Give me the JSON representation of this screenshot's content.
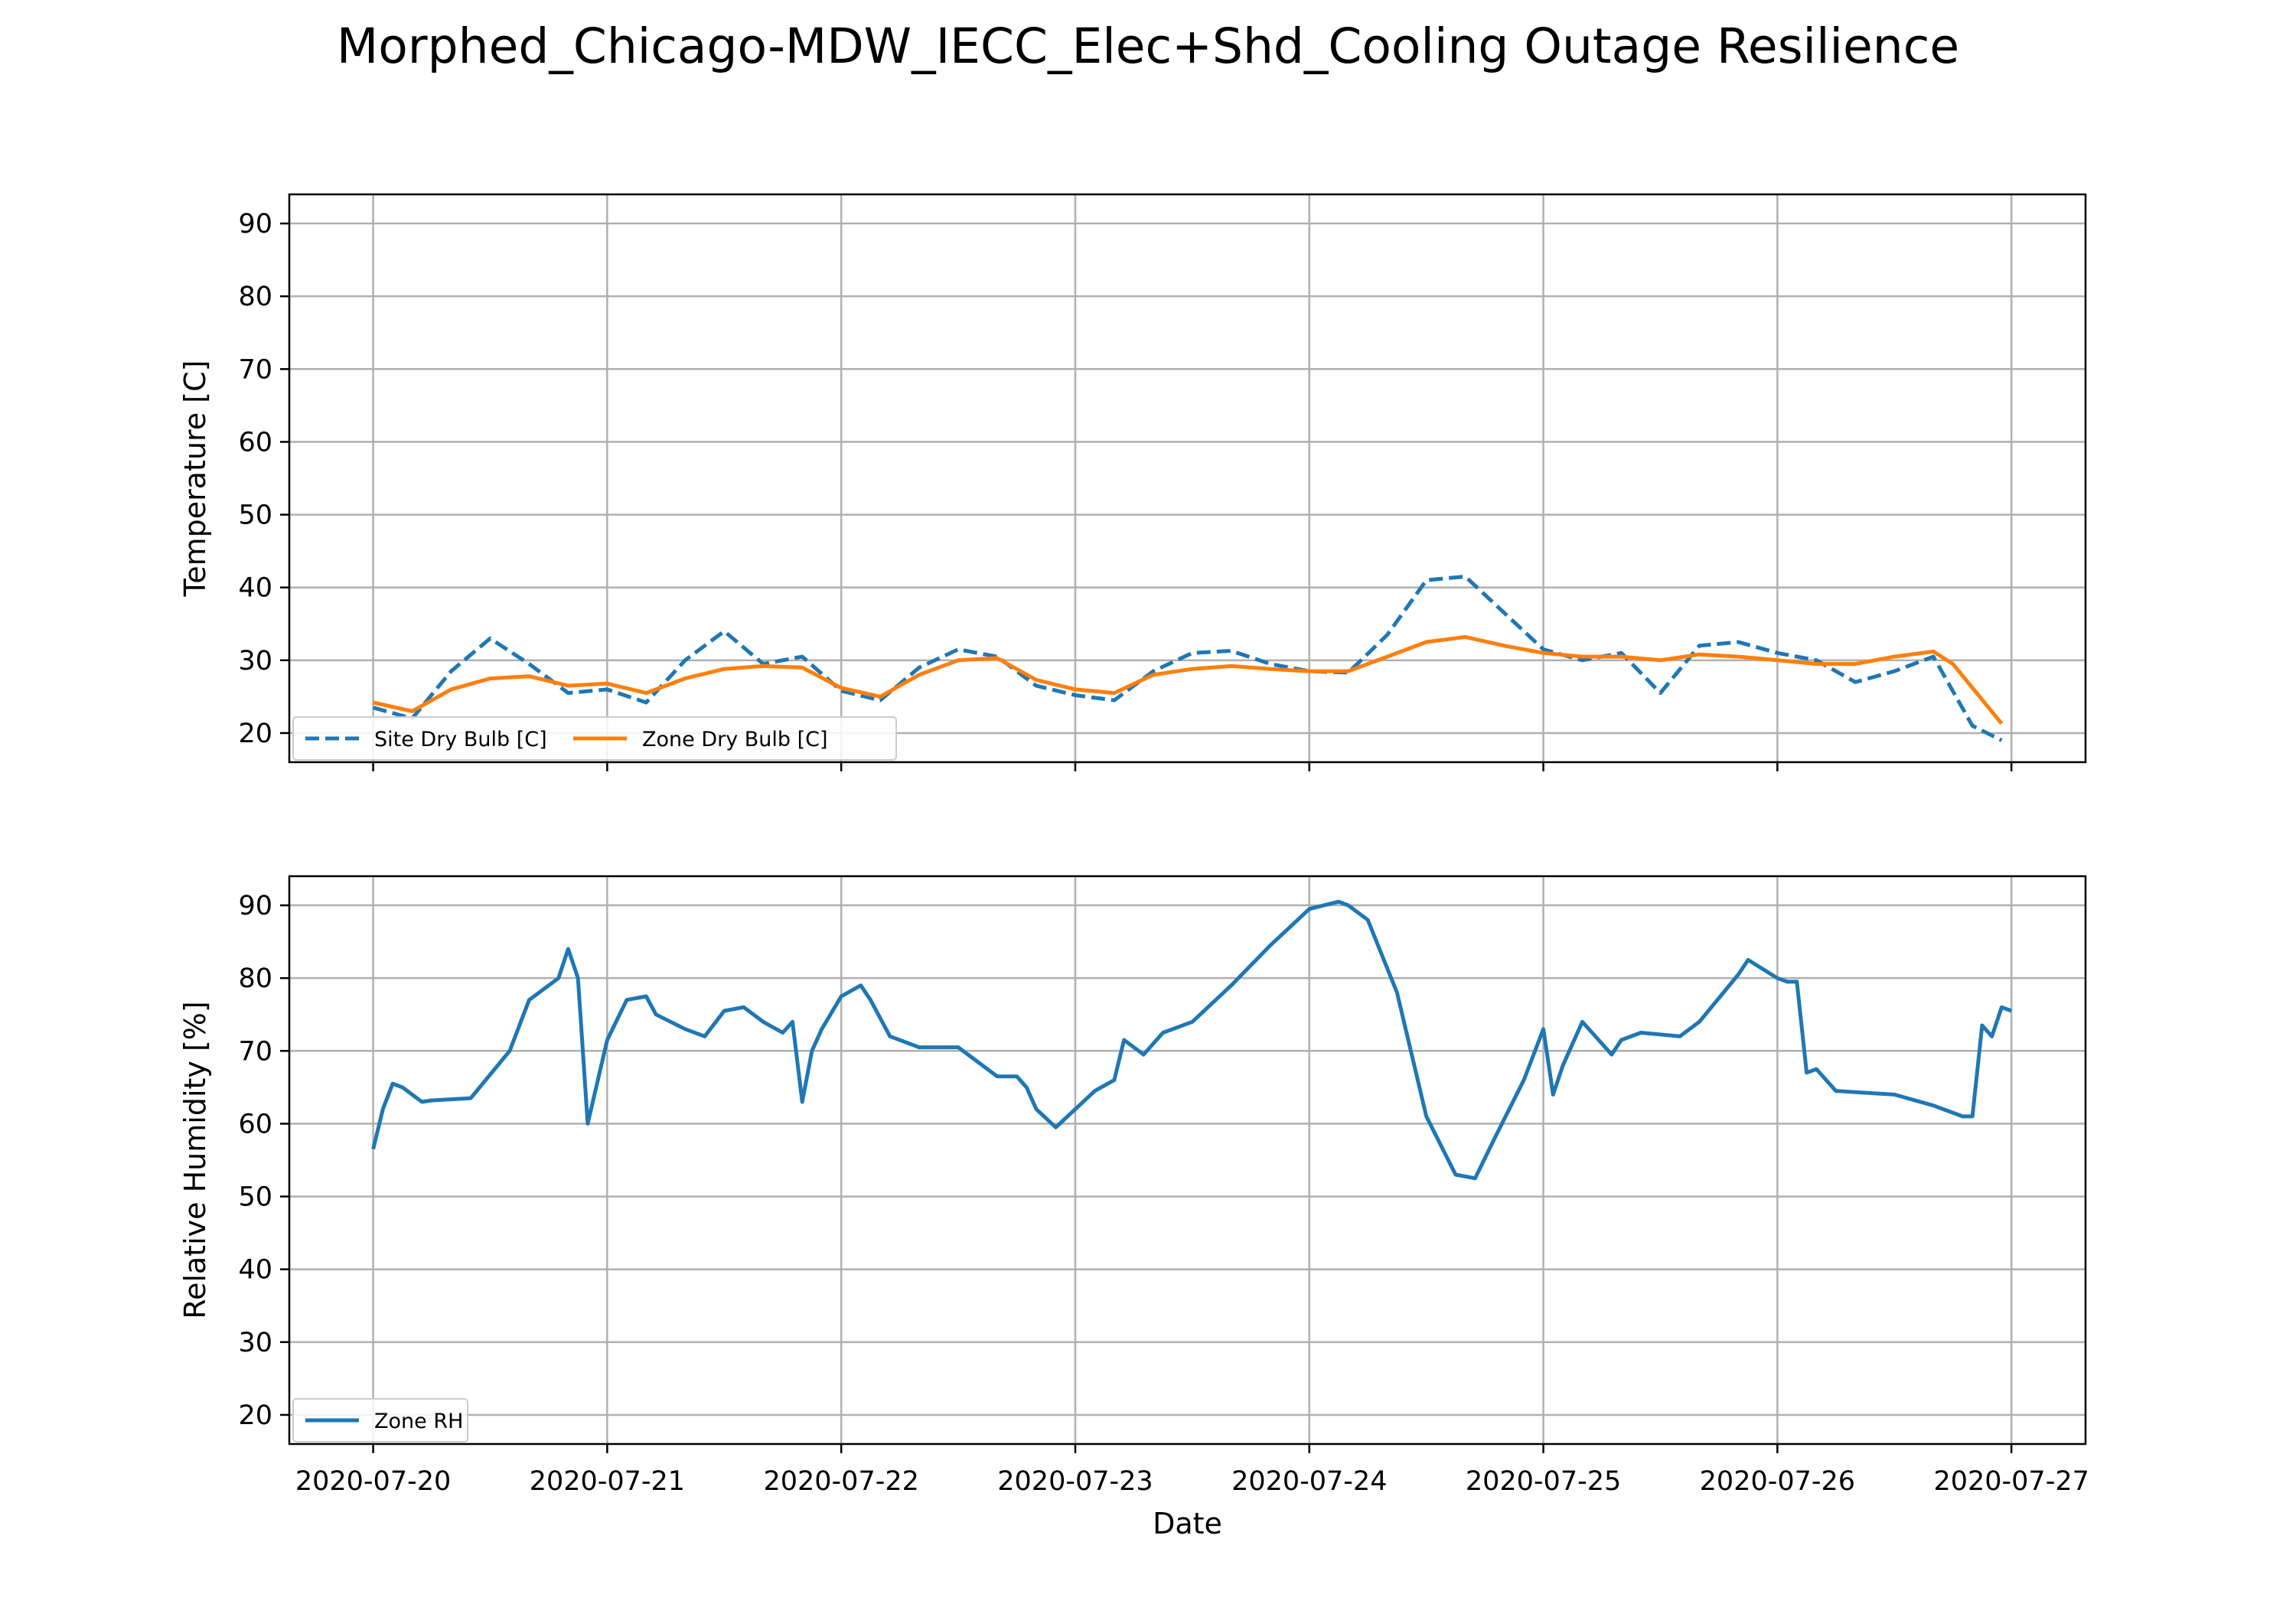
{
  "title": "Morphed_Chicago-MDW_IECC_Elec+Shd_Cooling Outage Resilience",
  "colors": {
    "site": "#1f77b4",
    "zone_temp": "#ff7f0e",
    "zone_rh": "#1f77b4"
  },
  "chart_data": [
    {
      "type": "line",
      "ylabel": "Temperature [C]",
      "ylim": [
        16,
        94
      ],
      "yticks": [
        20,
        30,
        40,
        50,
        60,
        70,
        80,
        90
      ],
      "xlim": [
        "2020-07-19T15:24",
        "2020-07-27T07:36"
      ],
      "xticks": [
        "2020-07-20",
        "2020-07-21",
        "2020-07-22",
        "2020-07-23",
        "2020-07-24",
        "2020-07-25",
        "2020-07-26",
        "2020-07-27"
      ],
      "xtick_labels_visible": false,
      "grid": true,
      "legend": {
        "placement": "lower left",
        "columns": 2
      },
      "series": [
        {
          "name": "Site Dry Bulb [C]",
          "style": "dashed",
          "color": "#1f77b4",
          "x": [
            "2020-07-20T00:00",
            "2020-07-20T04:00",
            "2020-07-20T08:00",
            "2020-07-20T12:00",
            "2020-07-20T16:00",
            "2020-07-20T20:00",
            "2020-07-21T00:00",
            "2020-07-21T04:00",
            "2020-07-21T08:00",
            "2020-07-21T12:00",
            "2020-07-21T16:00",
            "2020-07-21T20:00",
            "2020-07-22T00:00",
            "2020-07-22T04:00",
            "2020-07-22T08:00",
            "2020-07-22T12:00",
            "2020-07-22T16:00",
            "2020-07-22T20:00",
            "2020-07-23T00:00",
            "2020-07-23T04:00",
            "2020-07-23T08:00",
            "2020-07-23T12:00",
            "2020-07-23T16:00",
            "2020-07-23T20:00",
            "2020-07-24T00:00",
            "2020-07-24T04:00",
            "2020-07-24T08:00",
            "2020-07-24T12:00",
            "2020-07-24T16:00",
            "2020-07-24T20:00",
            "2020-07-25T00:00",
            "2020-07-25T04:00",
            "2020-07-25T08:00",
            "2020-07-25T12:00",
            "2020-07-25T16:00",
            "2020-07-25T20:00",
            "2020-07-26T00:00",
            "2020-07-26T04:00",
            "2020-07-26T08:00",
            "2020-07-26T12:00",
            "2020-07-26T16:00",
            "2020-07-26T20:00",
            "2020-07-26T23:00"
          ],
          "y": [
            23.5,
            22.0,
            28.5,
            33.0,
            29.5,
            25.5,
            26.0,
            24.2,
            30.0,
            34.0,
            29.5,
            30.5,
            25.8,
            24.5,
            29.0,
            31.5,
            30.5,
            26.5,
            25.2,
            24.5,
            28.5,
            31.0,
            31.3,
            29.5,
            28.5,
            28.3,
            33.5,
            41.0,
            41.5,
            36.5,
            31.5,
            30.0,
            31.0,
            25.5,
            32.0,
            32.5,
            31.0,
            30.0,
            27.0,
            28.5,
            30.5,
            21.0,
            19.0
          ]
        },
        {
          "name": "Zone Dry Bulb [C]",
          "style": "solid",
          "color": "#ff7f0e",
          "x": [
            "2020-07-20T00:00",
            "2020-07-20T04:00",
            "2020-07-20T08:00",
            "2020-07-20T12:00",
            "2020-07-20T16:00",
            "2020-07-20T20:00",
            "2020-07-21T00:00",
            "2020-07-21T04:00",
            "2020-07-21T08:00",
            "2020-07-21T12:00",
            "2020-07-21T16:00",
            "2020-07-21T20:00",
            "2020-07-22T00:00",
            "2020-07-22T04:00",
            "2020-07-22T08:00",
            "2020-07-22T12:00",
            "2020-07-22T16:00",
            "2020-07-22T20:00",
            "2020-07-23T00:00",
            "2020-07-23T04:00",
            "2020-07-23T08:00",
            "2020-07-23T12:00",
            "2020-07-23T16:00",
            "2020-07-23T20:00",
            "2020-07-24T00:00",
            "2020-07-24T04:00",
            "2020-07-24T08:00",
            "2020-07-24T12:00",
            "2020-07-24T16:00",
            "2020-07-24T20:00",
            "2020-07-25T00:00",
            "2020-07-25T04:00",
            "2020-07-25T08:00",
            "2020-07-25T12:00",
            "2020-07-25T16:00",
            "2020-07-25T20:00",
            "2020-07-26T00:00",
            "2020-07-26T04:00",
            "2020-07-26T08:00",
            "2020-07-26T12:00",
            "2020-07-26T16:00",
            "2020-07-26T18:00",
            "2020-07-26T23:00"
          ],
          "y": [
            24.2,
            23.0,
            26.0,
            27.5,
            27.8,
            26.5,
            26.8,
            25.5,
            27.5,
            28.8,
            29.2,
            29.0,
            26.2,
            25.0,
            28.0,
            30.0,
            30.3,
            27.3,
            26.0,
            25.5,
            28.0,
            28.8,
            29.2,
            28.8,
            28.5,
            28.5,
            30.5,
            32.5,
            33.2,
            32.0,
            31.0,
            30.5,
            30.5,
            30.0,
            30.8,
            30.5,
            30.0,
            29.5,
            29.5,
            30.5,
            31.2,
            29.5,
            21.3
          ]
        }
      ]
    },
    {
      "type": "line",
      "xlabel": "Date",
      "ylabel": "Relative Humidity [%]",
      "ylim": [
        16,
        94
      ],
      "yticks": [
        20,
        30,
        40,
        50,
        60,
        70,
        80,
        90
      ],
      "xlim": [
        "2020-07-19T15:24",
        "2020-07-27T07:36"
      ],
      "xticks": [
        "2020-07-20",
        "2020-07-21",
        "2020-07-22",
        "2020-07-23",
        "2020-07-24",
        "2020-07-25",
        "2020-07-26",
        "2020-07-27"
      ],
      "xtick_labels": [
        "2020-07-20",
        "2020-07-21",
        "2020-07-22",
        "2020-07-23",
        "2020-07-24",
        "2020-07-25",
        "2020-07-26",
        "2020-07-27"
      ],
      "grid": true,
      "legend": {
        "placement": "lower left",
        "columns": 1
      },
      "series": [
        {
          "name": "Zone RH",
          "style": "solid",
          "color": "#1f77b4",
          "x": [
            "2020-07-20T00:00",
            "2020-07-20T01:00",
            "2020-07-20T02:00",
            "2020-07-20T03:00",
            "2020-07-20T05:00",
            "2020-07-20T06:00",
            "2020-07-20T10:00",
            "2020-07-20T14:00",
            "2020-07-20T16:00",
            "2020-07-20T19:00",
            "2020-07-20T20:00",
            "2020-07-20T21:00",
            "2020-07-20T22:00",
            "2020-07-21T00:00",
            "2020-07-21T02:00",
            "2020-07-21T04:00",
            "2020-07-21T05:00",
            "2020-07-21T08:00",
            "2020-07-21T10:00",
            "2020-07-21T12:00",
            "2020-07-21T14:00",
            "2020-07-21T16:00",
            "2020-07-21T18:00",
            "2020-07-21T19:00",
            "2020-07-21T20:00",
            "2020-07-21T21:00",
            "2020-07-21T22:00",
            "2020-07-22T00:00",
            "2020-07-22T02:00",
            "2020-07-22T03:00",
            "2020-07-22T05:00",
            "2020-07-22T08:00",
            "2020-07-22T12:00",
            "2020-07-22T16:00",
            "2020-07-22T18:00",
            "2020-07-22T19:00",
            "2020-07-22T20:00",
            "2020-07-22T22:00",
            "2020-07-23T00:00",
            "2020-07-23T02:00",
            "2020-07-23T04:00",
            "2020-07-23T05:00",
            "2020-07-23T07:00",
            "2020-07-23T09:00",
            "2020-07-23T12:00",
            "2020-07-23T16:00",
            "2020-07-23T20:00",
            "2020-07-24T00:00",
            "2020-07-24T03:00",
            "2020-07-24T04:00",
            "2020-07-24T06:00",
            "2020-07-24T09:00",
            "2020-07-24T12:00",
            "2020-07-24T15:00",
            "2020-07-24T17:00",
            "2020-07-24T19:00",
            "2020-07-24T22:00",
            "2020-07-25T00:00",
            "2020-07-25T01:00",
            "2020-07-25T02:00",
            "2020-07-25T04:00",
            "2020-07-25T05:00",
            "2020-07-25T07:00",
            "2020-07-25T08:00",
            "2020-07-25T10:00",
            "2020-07-25T14:00",
            "2020-07-25T16:00",
            "2020-07-25T20:00",
            "2020-07-25T21:00",
            "2020-07-26T00:00",
            "2020-07-26T01:00",
            "2020-07-26T02:00",
            "2020-07-26T03:00",
            "2020-07-26T04:00",
            "2020-07-26T06:00",
            "2020-07-26T12:00",
            "2020-07-26T16:00",
            "2020-07-26T19:00",
            "2020-07-26T20:00",
            "2020-07-26T21:00",
            "2020-07-26T22:00",
            "2020-07-26T23:00",
            "2020-07-27T00:00"
          ],
          "y": [
            56.5,
            62.0,
            65.5,
            65.0,
            63.0,
            63.2,
            63.5,
            70.0,
            77.0,
            80.0,
            84.0,
            80.0,
            60.0,
            71.5,
            77.0,
            77.5,
            75.0,
            73.0,
            72.0,
            75.5,
            76.0,
            74.0,
            72.5,
            74.0,
            63.0,
            70.0,
            73.0,
            77.5,
            79.0,
            77.0,
            72.0,
            70.5,
            70.5,
            66.5,
            66.5,
            65.0,
            62.0,
            59.5,
            62.0,
            64.5,
            66.0,
            71.5,
            69.5,
            72.5,
            74.0,
            79.0,
            84.5,
            89.5,
            90.5,
            90.0,
            88.0,
            78.0,
            61.0,
            53.0,
            52.5,
            58.0,
            66.0,
            73.0,
            64.0,
            68.0,
            74.0,
            72.5,
            69.5,
            71.5,
            72.5,
            72.0,
            74.0,
            80.5,
            82.5,
            80.0,
            79.5,
            79.5,
            67.0,
            67.5,
            64.5,
            64.0,
            62.5,
            61.0,
            61.0,
            73.5,
            72.0,
            76.0,
            75.5
          ]
        }
      ]
    }
  ]
}
